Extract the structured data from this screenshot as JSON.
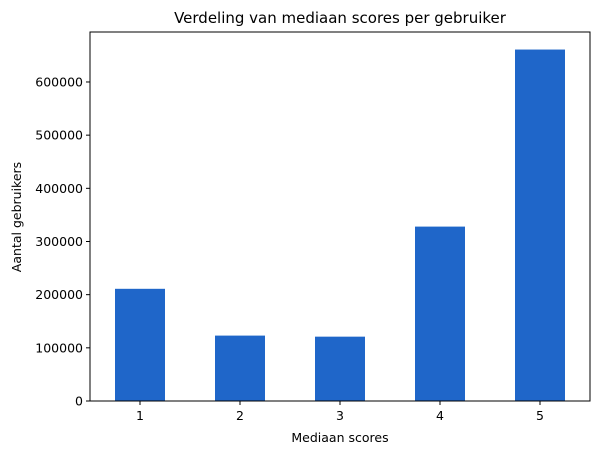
{
  "chart_data": {
    "type": "bar",
    "title": "Verdeling van mediaan scores per gebruiker",
    "xlabel": "Mediaan scores",
    "ylabel": "Aantal gebruikers",
    "categories": [
      "1",
      "2",
      "3",
      "4",
      "5"
    ],
    "values": [
      211000,
      123000,
      121000,
      328000,
      661000
    ],
    "ylim": [
      0,
      694000
    ],
    "yticks": [
      0,
      100000,
      200000,
      300000,
      400000,
      500000,
      600000
    ],
    "ytick_labels": [
      "0",
      "100000",
      "200000",
      "300000",
      "400000",
      "500000",
      "600000"
    ],
    "bar_color": "#1f66c9",
    "grid": false,
    "legend": "none"
  }
}
